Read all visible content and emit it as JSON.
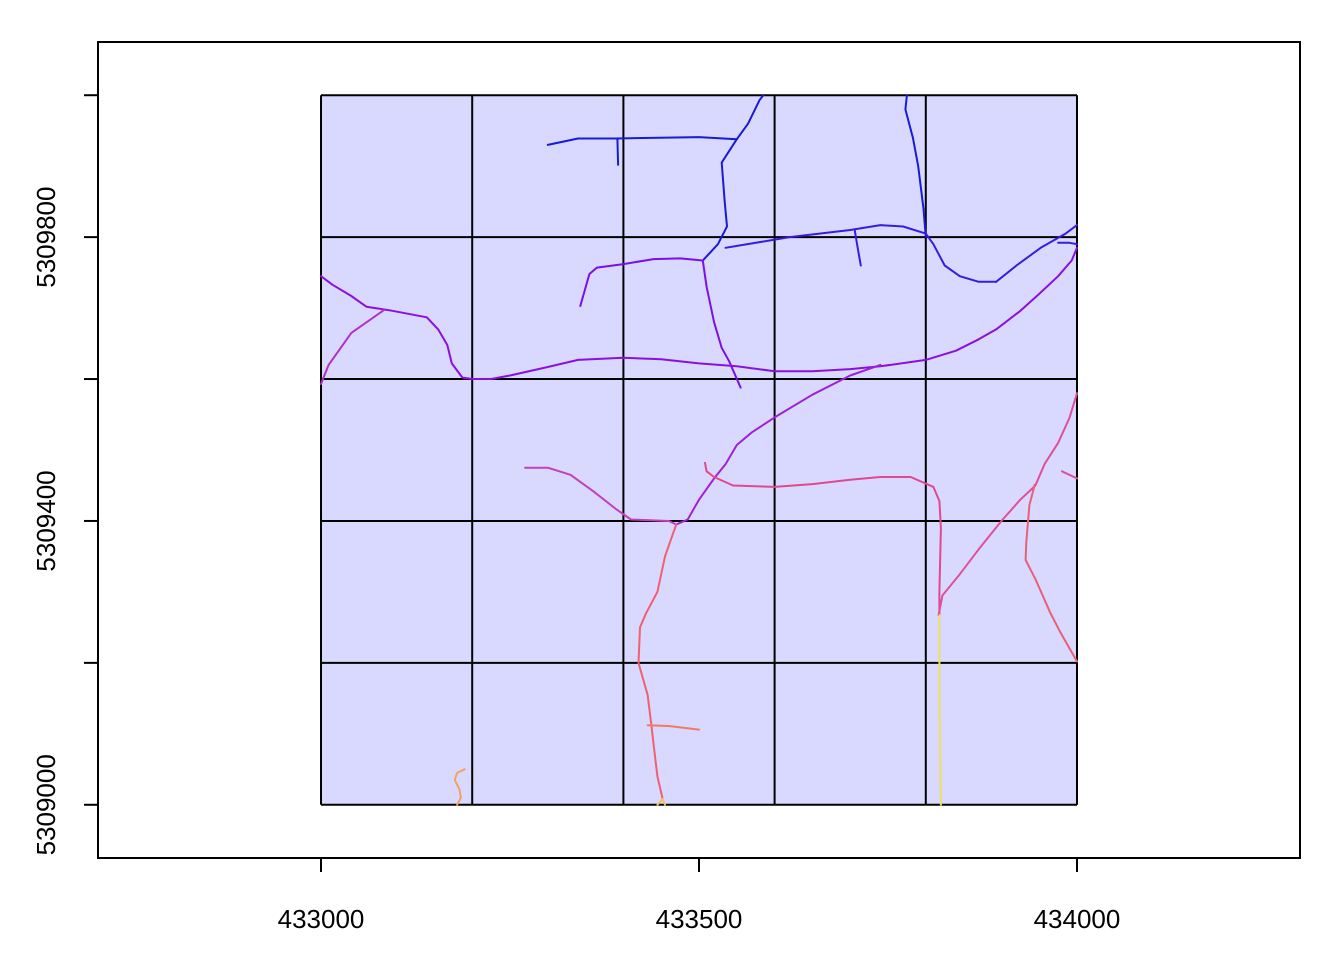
{
  "chart_data": {
    "type": "line",
    "title": "",
    "xlabel": "",
    "ylabel": "",
    "xlim": [
      432705,
      434295
    ],
    "ylim": [
      5308925,
      5310075
    ],
    "x_ticks": [
      {
        "value": 433000,
        "label": "433000"
      },
      {
        "value": 433500,
        "label": "433500"
      },
      {
        "value": 434000,
        "label": "434000"
      }
    ],
    "y_ticks": [
      {
        "value": 5309000,
        "label": "5309000"
      },
      {
        "value": 5309200,
        "label": ""
      },
      {
        "value": 5309400,
        "label": "5309400"
      },
      {
        "value": 5309600,
        "label": ""
      },
      {
        "value": 5309800,
        "label": "5309800"
      },
      {
        "value": 5310000,
        "label": ""
      }
    ],
    "grid_extent": {
      "x": [
        433000,
        434000
      ],
      "y": [
        5309000,
        5310000
      ]
    },
    "grid_fill": "#d9d9ff",
    "grid_lines_x": [
      433000,
      433200,
      433400,
      433600,
      433800,
      434000
    ],
    "grid_lines_y": [
      5309000,
      5309200,
      5309400,
      5309600,
      5309800,
      5310000
    ],
    "series": [
      {
        "color": "#1a1ad6",
        "points": [
          [
            433300,
            5309930
          ],
          [
            433340,
            5309939
          ],
          [
            433390,
            5309939
          ],
          [
            433500,
            5309941
          ],
          [
            433550,
            5309938
          ]
        ]
      },
      {
        "color": "#1a1ad6",
        "points": [
          [
            433392,
            5309939
          ],
          [
            433393,
            5309902
          ]
        ]
      },
      {
        "color": "#1a1ad6",
        "points": [
          [
            433550,
            5309938
          ],
          [
            433565,
            5309960
          ],
          [
            433580,
            5309993
          ],
          [
            433585,
            5310000
          ]
        ]
      },
      {
        "color": "#1a1ad6",
        "points": [
          [
            433550,
            5309938
          ],
          [
            433530,
            5309905
          ],
          [
            433534,
            5309850
          ],
          [
            433537,
            5309815
          ],
          [
            433525,
            5309790
          ],
          [
            433505,
            5309767
          ]
        ]
      },
      {
        "color": "#1a1ad6",
        "points": [
          [
            433775,
            5310000
          ],
          [
            433773,
            5309980
          ],
          [
            433783,
            5309940
          ],
          [
            433790,
            5309900
          ],
          [
            433797,
            5309840
          ],
          [
            433800,
            5309800
          ]
        ]
      },
      {
        "color": "#3a1ae0",
        "points": [
          [
            433535,
            5309785
          ],
          [
            433620,
            5309800
          ],
          [
            433700,
            5309810
          ],
          [
            433740,
            5309817
          ],
          [
            433770,
            5309815
          ],
          [
            433800,
            5309805
          ]
        ]
      },
      {
        "color": "#3a1ae0",
        "points": [
          [
            433706,
            5309810
          ],
          [
            433710,
            5309784
          ],
          [
            433714,
            5309760
          ]
        ]
      },
      {
        "color": "#3a1ae0",
        "points": [
          [
            433800,
            5309805
          ],
          [
            433810,
            5309790
          ],
          [
            433825,
            5309760
          ],
          [
            433845,
            5309745
          ],
          [
            433870,
            5309737
          ],
          [
            433893,
            5309737
          ]
        ]
      },
      {
        "color": "#3a1ae0",
        "points": [
          [
            433893,
            5309737
          ],
          [
            433920,
            5309760
          ],
          [
            433952,
            5309785
          ],
          [
            433985,
            5309805
          ],
          [
            434000,
            5309817
          ]
        ]
      },
      {
        "color": "#3a1ae0",
        "points": [
          [
            433975,
            5309792
          ],
          [
            433990,
            5309792
          ],
          [
            434000,
            5309790
          ]
        ]
      },
      {
        "color": "#7a10e6",
        "points": [
          [
            433505,
            5309767
          ],
          [
            433475,
            5309770
          ],
          [
            433440,
            5309769
          ],
          [
            433400,
            5309762
          ],
          [
            433365,
            5309757
          ],
          [
            433355,
            5309748
          ],
          [
            433343,
            5309703
          ]
        ]
      },
      {
        "color": "#7a10e6",
        "points": [
          [
            433505,
            5309767
          ],
          [
            433510,
            5309730
          ],
          [
            433520,
            5309680
          ],
          [
            433530,
            5309644
          ],
          [
            433540,
            5309625
          ],
          [
            433555,
            5309588
          ]
        ]
      },
      {
        "color": "#8a10e0",
        "points": [
          [
            433000,
            5309745
          ],
          [
            433015,
            5309733
          ],
          [
            433040,
            5309717
          ],
          [
            433060,
            5309702
          ],
          [
            433090,
            5309697
          ],
          [
            433140,
            5309687
          ],
          [
            433155,
            5309670
          ],
          [
            433167,
            5309648
          ],
          [
            433173,
            5309622
          ],
          [
            433187,
            5309602
          ],
          [
            433200,
            5309600
          ],
          [
            433225,
            5309600
          ],
          [
            433250,
            5309605
          ],
          [
            433300,
            5309617
          ],
          [
            433340,
            5309627
          ],
          [
            433400,
            5309630
          ],
          [
            433450,
            5309628
          ],
          [
            433500,
            5309622
          ],
          [
            433550,
            5309618
          ],
          [
            433600,
            5309611
          ],
          [
            433650,
            5309611
          ],
          [
            433700,
            5309614
          ],
          [
            433740,
            5309618
          ],
          [
            433800,
            5309627
          ],
          [
            433840,
            5309640
          ],
          [
            433870,
            5309656
          ],
          [
            433893,
            5309670
          ],
          [
            433925,
            5309696
          ],
          [
            433950,
            5309720
          ],
          [
            433975,
            5309745
          ],
          [
            433993,
            5309767
          ],
          [
            434000,
            5309785
          ]
        ]
      },
      {
        "color": "#a020d8",
        "points": [
          [
            433740,
            5309620
          ],
          [
            433700,
            5309605
          ],
          [
            433650,
            5309578
          ],
          [
            433600,
            5309546
          ],
          [
            433570,
            5309525
          ],
          [
            433550,
            5309507
          ],
          [
            433535,
            5309480
          ],
          [
            433520,
            5309460
          ],
          [
            433500,
            5309430
          ],
          [
            433485,
            5309402
          ],
          [
            433470,
            5309395
          ]
        ]
      },
      {
        "color": "#b030c8",
        "points": [
          [
            433000,
            5309593
          ],
          [
            433010,
            5309620
          ],
          [
            433040,
            5309665
          ],
          [
            433083,
            5309697
          ]
        ]
      },
      {
        "color": "#c040c0",
        "points": [
          [
            433270,
            5309475
          ],
          [
            433300,
            5309475
          ],
          [
            433330,
            5309465
          ],
          [
            433360,
            5309442
          ],
          [
            433390,
            5309417
          ],
          [
            433410,
            5309402
          ],
          [
            433460,
            5309400
          ],
          [
            433470,
            5309395
          ]
        ]
      },
      {
        "color": "#e04890",
        "points": [
          [
            433508,
            5309482
          ],
          [
            433510,
            5309470
          ],
          [
            433520,
            5309462
          ],
          [
            433545,
            5309450
          ],
          [
            433600,
            5309448
          ],
          [
            433650,
            5309452
          ],
          [
            433700,
            5309458
          ],
          [
            433740,
            5309462
          ],
          [
            433780,
            5309462
          ],
          [
            433810,
            5309448
          ],
          [
            433818,
            5309428
          ],
          [
            433820,
            5309390
          ],
          [
            433818,
            5309300
          ],
          [
            433818,
            5309267
          ]
        ]
      },
      {
        "color": "#e05098",
        "points": [
          [
            433980,
            5309470
          ],
          [
            434000,
            5309460
          ]
        ]
      },
      {
        "color": "#e05098",
        "points": [
          [
            434000,
            5309580
          ],
          [
            433990,
            5309545
          ],
          [
            433975,
            5309510
          ],
          [
            433957,
            5309480
          ],
          [
            433945,
            5309450
          ],
          [
            433925,
            5309430
          ],
          [
            433900,
            5309400
          ],
          [
            433870,
            5309360
          ],
          [
            433845,
            5309325
          ],
          [
            433822,
            5309295
          ],
          [
            433817,
            5309267
          ]
        ]
      },
      {
        "color": "#e86078",
        "points": [
          [
            433944,
            5309451
          ],
          [
            433937,
            5309422
          ],
          [
            433933,
            5309370
          ],
          [
            433932,
            5309345
          ],
          [
            433945,
            5309318
          ],
          [
            433965,
            5309270
          ],
          [
            433978,
            5309243
          ],
          [
            434000,
            5309202
          ]
        ]
      },
      {
        "color": "#f06070",
        "points": [
          [
            433470,
            5309395
          ],
          [
            433465,
            5309380
          ],
          [
            433455,
            5309350
          ],
          [
            433445,
            5309300
          ],
          [
            433430,
            5309270
          ],
          [
            433422,
            5309250
          ],
          [
            433420,
            5309200
          ],
          [
            433432,
            5309155
          ],
          [
            433437,
            5309112
          ],
          [
            433440,
            5309085
          ],
          [
            433445,
            5309040
          ],
          [
            433452,
            5309008
          ]
        ]
      },
      {
        "color": "#f07a66",
        "points": [
          [
            433432,
            5309112
          ],
          [
            433460,
            5309111
          ],
          [
            433500,
            5309106
          ]
        ]
      },
      {
        "color": "#f5a060",
        "points": [
          [
            433190,
            5309050
          ],
          [
            433180,
            5309045
          ],
          [
            433177,
            5309035
          ],
          [
            433183,
            5309022
          ],
          [
            433185,
            5309010
          ],
          [
            433180,
            5309000
          ]
        ]
      },
      {
        "color": "#f5c060",
        "points": [
          [
            433452,
            5309008
          ],
          [
            433455,
            5309000
          ]
        ]
      },
      {
        "color": "#f5c060",
        "points": [
          [
            433445,
            5309000
          ],
          [
            433452,
            5309008
          ]
        ]
      },
      {
        "color": "#f0e060",
        "points": [
          [
            433818,
            5309267
          ],
          [
            433818,
            5309150
          ],
          [
            433820,
            5309000
          ]
        ]
      }
    ]
  }
}
